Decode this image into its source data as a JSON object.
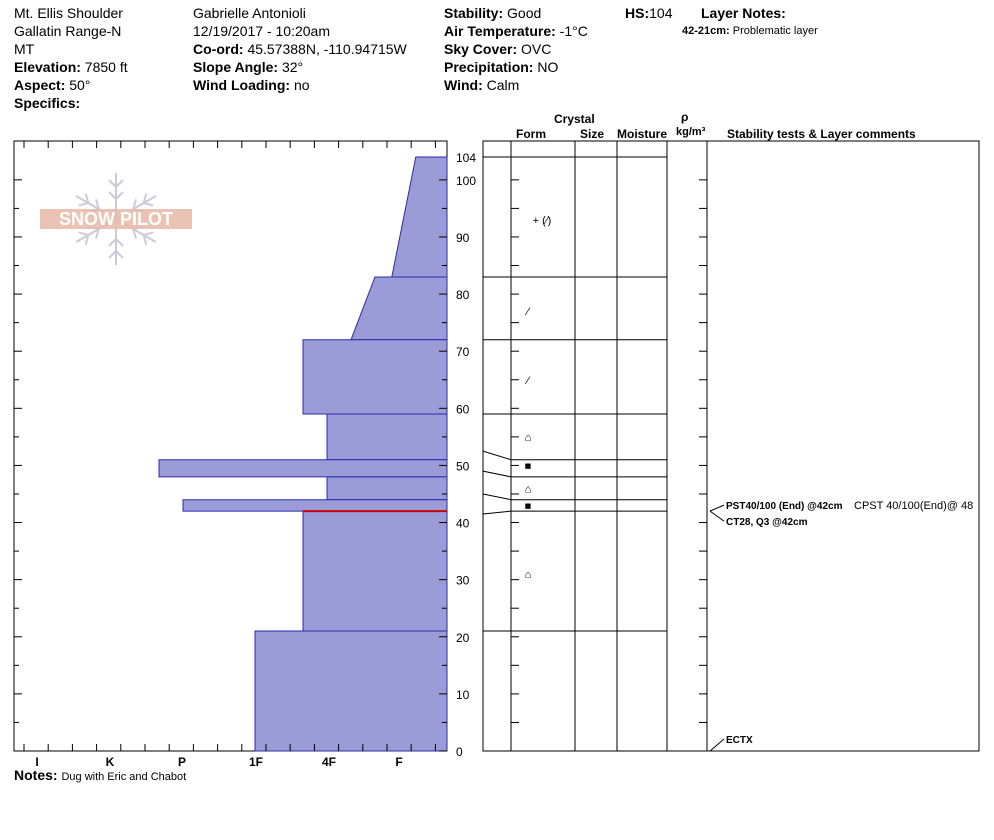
{
  "header": {
    "location": "Mt. Ellis Shoulder",
    "range": "Gallatin Range-N",
    "state": "MT",
    "elevation_label": "Elevation:",
    "elevation_value": "7850 ft",
    "aspect_label": "Aspect:",
    "aspect_value": "50°",
    "specifics_label": "Specifics:",
    "observer": "Gabrielle Antonioli",
    "datetime": "12/19/2017 - 10:20am",
    "coord_label": "Co-ord:",
    "coord_value": "45.57388N, -110.94715W",
    "slope_label": "Slope Angle:",
    "slope_value": "32°",
    "wind_loading_label": "Wind Loading:",
    "wind_loading_value": "no",
    "stability_label": "Stability:",
    "stability_value": "Good",
    "air_temp_label": "Air Temperature:",
    "air_temp_value": "-1°C",
    "sky_label": "Sky Cover:",
    "sky_value": "OVC",
    "precip_label": "Precipitation:",
    "precip_value": "NO",
    "wind_label": "Wind:",
    "wind_value": "Calm",
    "hs_label": "HS:",
    "hs_value": "104",
    "layer_notes_label": "Layer Notes:",
    "layer_note_range": "42-21cm:",
    "layer_note_text": "Problematic layer"
  },
  "notes": {
    "label": "Notes:",
    "text": "Dug with Eric and Chabot"
  },
  "logo": {
    "text": "SNOW PILOT"
  },
  "columns": {
    "crystal": "Crystal",
    "form": "Form",
    "size": "Size",
    "moisture": "Moisture",
    "rho": "ρ",
    "density_unit": "kg/m³",
    "stability": "Stability tests & Layer comments"
  },
  "chart_data": {
    "type": "bar",
    "description_of_axes": "hand hardness profile vs height",
    "ylim": [
      0,
      104
    ],
    "y_ticks": [
      0,
      10,
      20,
      30,
      40,
      50,
      60,
      70,
      80,
      90,
      100
    ],
    "hs_tick": "104",
    "x_categories": [
      "I",
      "K",
      "P",
      "1F",
      "4F",
      "F"
    ],
    "hardness_scale_note": "F=1 at plot left edge reversed: values measured from right edge in hardness units",
    "layers": [
      {
        "bottom": 83,
        "top": 104,
        "hardness_bottom": 2.3,
        "hardness_top": 1.3
      },
      {
        "bottom": 72,
        "top": 83,
        "hardness_bottom": 4.0,
        "hardness_top": 3.0
      },
      {
        "bottom": 59,
        "top": 72,
        "hardness_bottom": 6.0,
        "hardness_top": 6.0
      },
      {
        "bottom": 51,
        "top": 59,
        "hardness_bottom": 5.0,
        "hardness_top": 5.0
      },
      {
        "bottom": 48,
        "top": 51,
        "hardness_bottom": 12.0,
        "hardness_top": 12.0
      },
      {
        "bottom": 44,
        "top": 48,
        "hardness_bottom": 5.0,
        "hardness_top": 5.0
      },
      {
        "bottom": 42,
        "top": 44,
        "hardness_bottom": 11.0,
        "hardness_top": 11.0
      },
      {
        "bottom": 21,
        "top": 42,
        "hardness_bottom": 6.0,
        "hardness_top": 6.0
      },
      {
        "bottom": 0,
        "top": 21,
        "hardness_bottom": 8.0,
        "hardness_top": 8.0
      }
    ],
    "problem_layer_height": 42,
    "grain_forms": [
      {
        "height": 93,
        "symbol": "+ (⁄)"
      },
      {
        "height": 77,
        "symbol": "⁄"
      },
      {
        "height": 65,
        "symbol": "⁄"
      },
      {
        "height": 55,
        "symbol": "⌂"
      },
      {
        "height": 50,
        "symbol": "■"
      },
      {
        "height": 46,
        "symbol": "⌂"
      },
      {
        "height": 43,
        "symbol": "■"
      },
      {
        "height": 31,
        "symbol": "⌂"
      }
    ],
    "stability_tests": [
      {
        "height": 42,
        "text": "PST40/100 (End) @42cm",
        "extra": "CPST 40/100(End)@ 48"
      },
      {
        "height": 42,
        "text": "CT28, Q3 @42cm",
        "extra": ""
      },
      {
        "height": 0,
        "text": "ECTX",
        "extra": ""
      }
    ]
  },
  "colors": {
    "fill": "#9b9bd7",
    "stroke": "#2b2bab",
    "problem": "#cc0000",
    "logo": "#e8b8a8"
  }
}
